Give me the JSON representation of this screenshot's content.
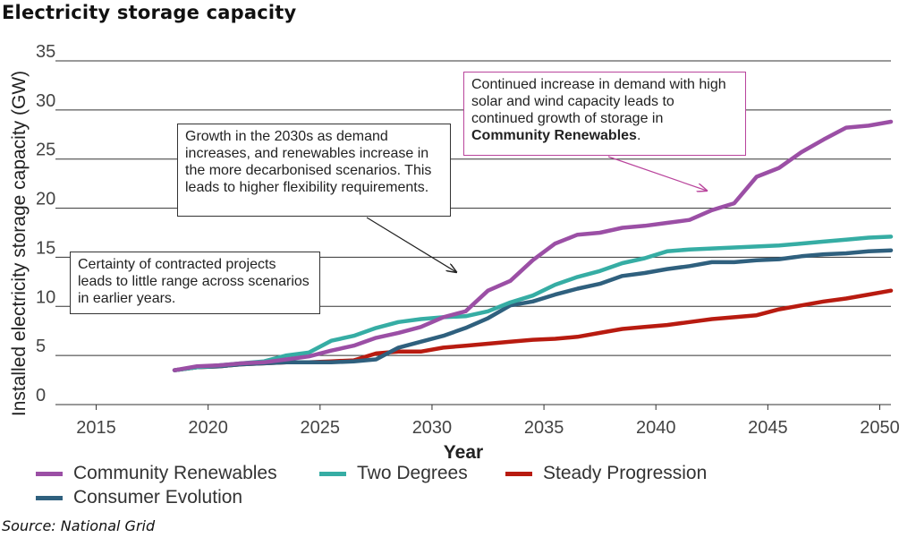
{
  "title": "Electricity storage capacity",
  "source": "Source: National Grid",
  "notes": {
    "n1": "Growth in the 2030s as demand increases, and renewables increase in the more decarbonised scenarios. This leads to higher flexibility requirements.",
    "n2_pre": "Continued increase in demand with high solar and wind capacity leads to continued growth of storage in ",
    "n2_bold": "Community Renewables",
    "n2_post": ".",
    "n3": "Certainty of contracted projects leads to little range across scenarios in earlier years."
  },
  "chart_data": {
    "type": "line",
    "title": "Electricity storage capacity",
    "xlabel": "Year",
    "ylabel": "Installed electricity storage capacity (GW)",
    "xlim": [
      2013.5,
      2050.5
    ],
    "ylim": [
      0,
      35
    ],
    "xticks": [
      2015,
      2020,
      2025,
      2030,
      2035,
      2040,
      2045,
      2050
    ],
    "yticks": [
      0,
      5,
      10,
      15,
      20,
      25,
      30,
      35
    ],
    "grid": "horizontal",
    "legend": "bottom",
    "series": [
      {
        "name": "Community Renewables",
        "color": "#9b4fa5",
        "points": [
          [
            2018.5,
            3.5
          ],
          [
            2019.5,
            3.9
          ],
          [
            2020.5,
            4.0
          ],
          [
            2021.5,
            4.2
          ],
          [
            2022.5,
            4.3
          ],
          [
            2023.5,
            4.6
          ],
          [
            2024.5,
            4.9
          ],
          [
            2025.5,
            5.5
          ],
          [
            2026.5,
            6.0
          ],
          [
            2027.5,
            6.8
          ],
          [
            2028.5,
            7.3
          ],
          [
            2029.5,
            7.9
          ],
          [
            2030.5,
            8.9
          ],
          [
            2031.5,
            9.5
          ],
          [
            2032.5,
            11.6
          ],
          [
            2033.5,
            12.6
          ],
          [
            2034.5,
            14.7
          ],
          [
            2035.5,
            16.4
          ],
          [
            2036.5,
            17.3
          ],
          [
            2037.5,
            17.5
          ],
          [
            2038.5,
            18.0
          ],
          [
            2039.5,
            18.2
          ],
          [
            2040.5,
            18.5
          ],
          [
            2041.5,
            18.8
          ],
          [
            2042.5,
            19.8
          ],
          [
            2043.5,
            20.5
          ],
          [
            2044.5,
            23.2
          ],
          [
            2045.5,
            24.1
          ],
          [
            2046.5,
            25.7
          ],
          [
            2047.5,
            27.0
          ],
          [
            2048.5,
            28.2
          ],
          [
            2049.5,
            28.4
          ],
          [
            2050.5,
            28.8
          ]
        ]
      },
      {
        "name": "Two Degrees",
        "color": "#36ada4",
        "points": [
          [
            2018.5,
            3.5
          ],
          [
            2019.5,
            3.8
          ],
          [
            2020.5,
            4.0
          ],
          [
            2021.5,
            4.2
          ],
          [
            2022.5,
            4.4
          ],
          [
            2023.5,
            5.0
          ],
          [
            2024.5,
            5.3
          ],
          [
            2025.5,
            6.5
          ],
          [
            2026.5,
            7.0
          ],
          [
            2027.5,
            7.8
          ],
          [
            2028.5,
            8.4
          ],
          [
            2029.5,
            8.7
          ],
          [
            2030.5,
            8.9
          ],
          [
            2031.5,
            9.0
          ],
          [
            2032.5,
            9.5
          ],
          [
            2033.5,
            10.4
          ],
          [
            2034.5,
            11.1
          ],
          [
            2035.5,
            12.2
          ],
          [
            2036.5,
            13.0
          ],
          [
            2037.5,
            13.6
          ],
          [
            2038.5,
            14.4
          ],
          [
            2039.5,
            14.9
          ],
          [
            2040.5,
            15.6
          ],
          [
            2041.5,
            15.8
          ],
          [
            2042.5,
            15.9
          ],
          [
            2043.5,
            16.0
          ],
          [
            2044.5,
            16.1
          ],
          [
            2045.5,
            16.2
          ],
          [
            2046.5,
            16.4
          ],
          [
            2047.5,
            16.6
          ],
          [
            2048.5,
            16.8
          ],
          [
            2049.5,
            17.0
          ],
          [
            2050.5,
            17.1
          ]
        ]
      },
      {
        "name": "Steady Progression",
        "color": "#b81b10",
        "points": [
          [
            2018.5,
            3.5
          ],
          [
            2019.5,
            3.8
          ],
          [
            2020.5,
            3.9
          ],
          [
            2021.5,
            4.1
          ],
          [
            2022.5,
            4.2
          ],
          [
            2023.5,
            4.3
          ],
          [
            2024.5,
            4.3
          ],
          [
            2025.5,
            4.4
          ],
          [
            2026.5,
            4.5
          ],
          [
            2027.5,
            5.2
          ],
          [
            2028.5,
            5.4
          ],
          [
            2029.5,
            5.4
          ],
          [
            2030.5,
            5.8
          ],
          [
            2031.5,
            6.0
          ],
          [
            2032.5,
            6.2
          ],
          [
            2033.5,
            6.4
          ],
          [
            2034.5,
            6.6
          ],
          [
            2035.5,
            6.7
          ],
          [
            2036.5,
            6.9
          ],
          [
            2037.5,
            7.3
          ],
          [
            2038.5,
            7.7
          ],
          [
            2039.5,
            7.9
          ],
          [
            2040.5,
            8.1
          ],
          [
            2041.5,
            8.4
          ],
          [
            2042.5,
            8.7
          ],
          [
            2043.5,
            8.9
          ],
          [
            2044.5,
            9.1
          ],
          [
            2045.5,
            9.7
          ],
          [
            2046.5,
            10.1
          ],
          [
            2047.5,
            10.5
          ],
          [
            2048.5,
            10.8
          ],
          [
            2049.5,
            11.2
          ],
          [
            2050.5,
            11.6
          ]
        ]
      },
      {
        "name": "Consumer Evolution",
        "color": "#2f607e",
        "points": [
          [
            2018.5,
            3.5
          ],
          [
            2019.5,
            3.8
          ],
          [
            2020.5,
            3.9
          ],
          [
            2021.5,
            4.1
          ],
          [
            2022.5,
            4.2
          ],
          [
            2023.5,
            4.3
          ],
          [
            2024.5,
            4.3
          ],
          [
            2025.5,
            4.3
          ],
          [
            2026.5,
            4.4
          ],
          [
            2027.5,
            4.6
          ],
          [
            2028.5,
            5.8
          ],
          [
            2029.5,
            6.4
          ],
          [
            2030.5,
            7.0
          ],
          [
            2031.5,
            7.8
          ],
          [
            2032.5,
            8.8
          ],
          [
            2033.5,
            10.1
          ],
          [
            2034.5,
            10.5
          ],
          [
            2035.5,
            11.2
          ],
          [
            2036.5,
            11.8
          ],
          [
            2037.5,
            12.3
          ],
          [
            2038.5,
            13.1
          ],
          [
            2039.5,
            13.4
          ],
          [
            2040.5,
            13.8
          ],
          [
            2041.5,
            14.1
          ],
          [
            2042.5,
            14.5
          ],
          [
            2043.5,
            14.5
          ],
          [
            2044.5,
            14.7
          ],
          [
            2045.5,
            14.8
          ],
          [
            2046.5,
            15.1
          ],
          [
            2047.5,
            15.3
          ],
          [
            2048.5,
            15.4
          ],
          [
            2049.5,
            15.6
          ],
          [
            2050.5,
            15.7
          ]
        ]
      }
    ]
  },
  "legend_layout": [
    {
      "series": 0,
      "row": 0,
      "col": 0
    },
    {
      "series": 1,
      "row": 0,
      "col": 1
    },
    {
      "series": 2,
      "row": 0,
      "col": 2
    },
    {
      "series": 3,
      "row": 1,
      "col": 0
    }
  ]
}
